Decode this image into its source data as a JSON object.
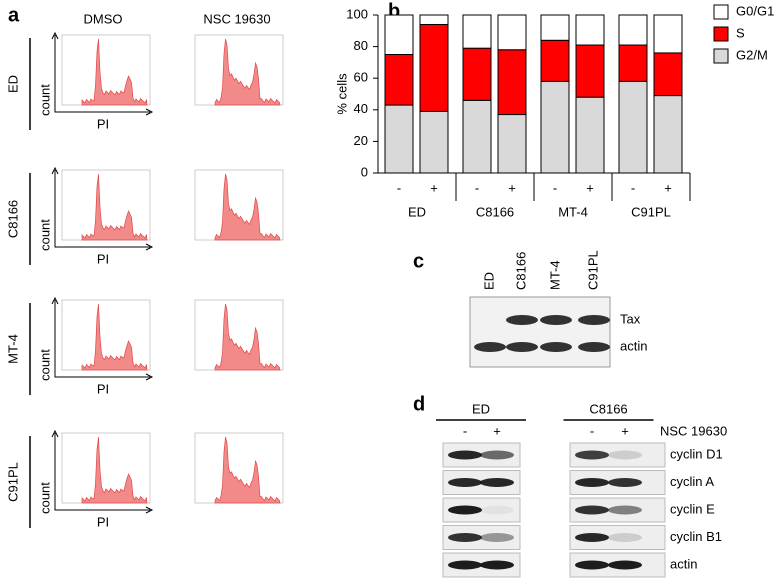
{
  "panel_labels": [
    "a",
    "b",
    "c",
    "d"
  ],
  "panel_a": {
    "columns": [
      "DMSO",
      "NSC 19630"
    ],
    "rows": [
      {
        "label": "ED",
        "y_label": "count",
        "x_label": "PI"
      },
      {
        "label": "C8166",
        "y_label": "count",
        "x_label": "PI"
      },
      {
        "label": "MT-4",
        "y_label": "count",
        "x_label": "PI"
      },
      {
        "label": "C91PL",
        "y_label": "count",
        "x_label": "PI"
      }
    ]
  },
  "chart_data": {
    "type": "stacked-bar",
    "y_label": "% cells",
    "categories": [
      "-",
      "+",
      "-",
      "+",
      "-",
      "+",
      "-",
      "+"
    ],
    "groups": [
      "ED",
      "C8166",
      "MT-4",
      "C91PL"
    ],
    "series": [
      {
        "name": "G2/M",
        "color": "#d9d9d9",
        "values": [
          43,
          39,
          46,
          37,
          58,
          48,
          58,
          49
        ]
      },
      {
        "name": "S",
        "color": "#ff0000",
        "values": [
          32,
          55,
          33,
          41,
          26,
          33,
          23,
          27
        ]
      },
      {
        "name": "G0/G1",
        "color": "#ffffff",
        "values": [
          25,
          6,
          21,
          22,
          16,
          19,
          19,
          24
        ]
      }
    ],
    "ylim": [
      0,
      100
    ],
    "yticks": [
      0,
      20,
      40,
      60,
      80,
      100
    ]
  },
  "panel_c": {
    "lanes": [
      "ED",
      "C8166",
      "MT-4",
      "C91PL"
    ],
    "rows": [
      "Tax",
      "actin"
    ]
  },
  "panel_d": {
    "groups": [
      {
        "name": "ED",
        "treatments": [
          "-",
          "+"
        ]
      },
      {
        "name": "C8166",
        "treatments": [
          "-",
          "+"
        ]
      }
    ],
    "treatment_label": "NSC 19630",
    "rows": [
      "cyclin D1",
      "cyclin A",
      "cyclin E",
      "cyclin B1",
      "actin"
    ]
  }
}
